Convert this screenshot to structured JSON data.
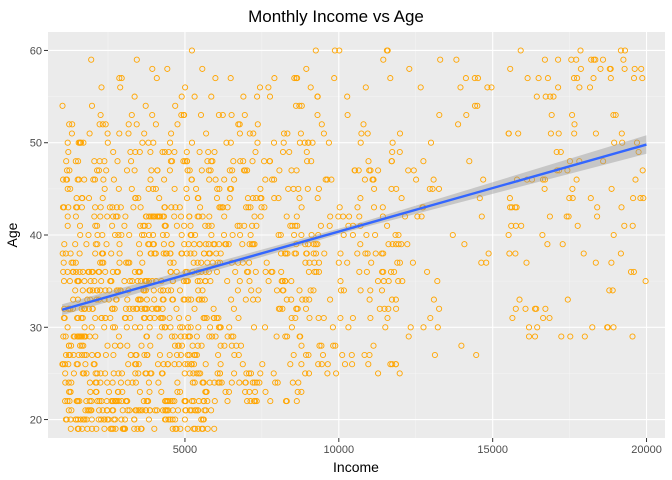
{
  "chart_data": {
    "type": "scatter",
    "title": "Monthly Income vs Age",
    "xlabel": "Income",
    "ylabel": "Age",
    "xlim": [
      550,
      20600
    ],
    "ylim": [
      18,
      62
    ],
    "x_ticks": [
      5000,
      10000,
      15000,
      20000
    ],
    "x_tick_labels": [
      "5000",
      "10000",
      "15000",
      "20000"
    ],
    "y_ticks": [
      20,
      30,
      40,
      50,
      60
    ],
    "y_tick_labels": [
      "20",
      "30",
      "40",
      "50",
      "60"
    ],
    "grid": true,
    "legend": "none",
    "point_color": "#FFA500",
    "line_color": "#3366FF",
    "band_color": "#999999",
    "trend": {
      "x": [
        1009,
        19999
      ],
      "y": [
        31.9,
        49.8
      ],
      "band_at_start": 0.6,
      "band_mid": 0.3,
      "band_at_end": 1.0
    },
    "series": [
      {
        "x_min": 1009,
        "x_max": 19999,
        "y_min": 19,
        "y_max": 60,
        "count": 1470,
        "clusters": [
          {
            "x_range": [
              1009,
              3500
            ],
            "y_range": [
              19,
              59
            ],
            "count": 430
          },
          {
            "x_range": [
              3500,
              6000
            ],
            "y_range": [
              19,
              60
            ],
            "count": 420
          },
          {
            "x_range": [
              6000,
              9000
            ],
            "y_range": [
              22,
              58
            ],
            "count": 260
          },
          {
            "x_range": [
              9000,
              12000
            ],
            "y_range": [
              25,
              60
            ],
            "count": 170
          },
          {
            "x_range": [
              12000,
              15000
            ],
            "y_range": [
              27,
              59
            ],
            "count": 55
          },
          {
            "x_range": [
              15500,
              20000
            ],
            "y_range": [
              29,
              60
            ],
            "count": 135
          }
        ]
      }
    ]
  }
}
